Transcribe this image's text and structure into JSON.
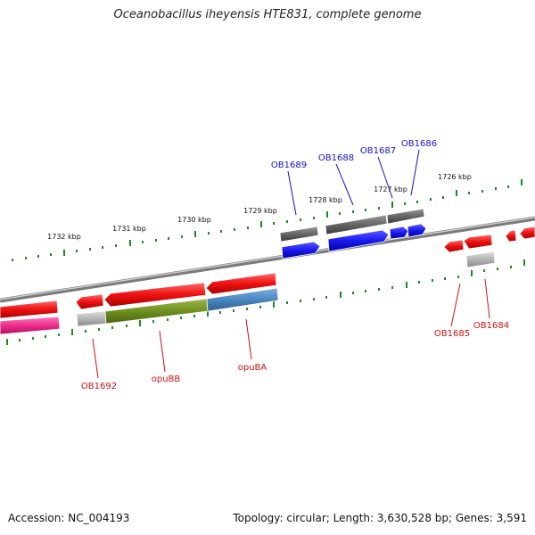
{
  "title": "Oceanobacillus iheyensis HTE831, complete genome",
  "footer": {
    "accession": "Accession: NC_004193",
    "summary": "Topology: circular; Length: 3,630,528 bp; Genes: 3,591"
  },
  "colors": {
    "backbone": "#8a8a8a",
    "tick": "#1e8a1e",
    "forward_cds": "#ee1111",
    "reverse_cds": "#ee1111",
    "highlight_blue": "#1a1aee",
    "dark_gray": "#666666",
    "light_gray": "#b5b5b5",
    "olive": "#6f8f1f",
    "steel_blue": "#4a86c0",
    "magenta": "#ee2d8e",
    "label_blue": "#1111cc",
    "label_red": "#cc1111"
  },
  "scale_labels": [
    "1732 kbp",
    "1731 kbp",
    "1730 kbp",
    "1729 kbp",
    "1728 kbp",
    "1727 kbp",
    "1726 kbp"
  ],
  "gene_labels": {
    "blue": [
      "OB1689",
      "OB1688",
      "OB1687",
      "OB1686"
    ],
    "red": [
      "OB1692",
      "opuBB",
      "opuBA",
      "OB1685",
      "OB1684"
    ]
  }
}
